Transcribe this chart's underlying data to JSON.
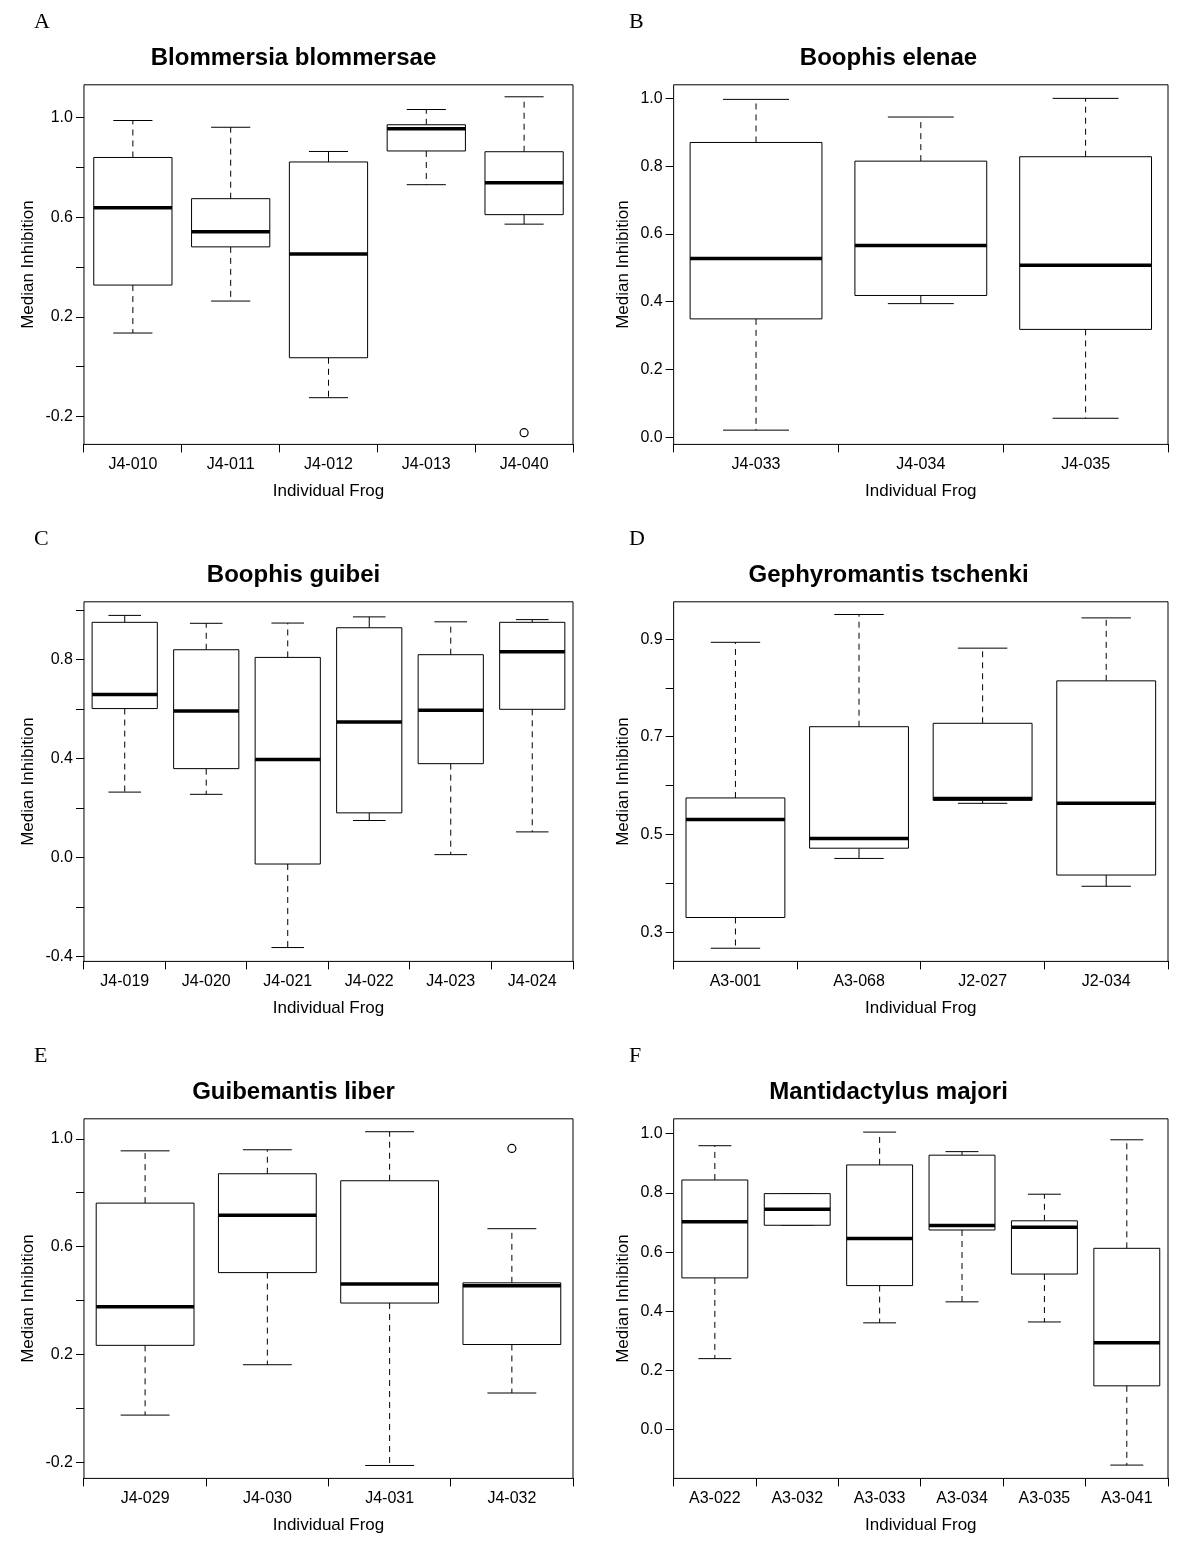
{
  "chart_data": [
    {
      "type": "box",
      "title": "Blommersia blommersae",
      "xlabel": "Individual Frog",
      "ylabel": "Median Inhibition",
      "annotations": [
        "A"
      ],
      "categories": [
        "J4-010",
        "J4-011",
        "J4-012",
        "J4-013",
        "J4-040"
      ],
      "boxes": [
        {
          "low": 0.136,
          "q1": 0.328,
          "median": 0.638,
          "q3": 0.839,
          "high": 0.987
        },
        {
          "low": 0.264,
          "q1": 0.481,
          "median": 0.542,
          "q3": 0.674,
          "high": 0.96
        },
        {
          "low": -0.123,
          "q1": 0.037,
          "median": 0.452,
          "q3": 0.821,
          "high": 0.863
        },
        {
          "low": 0.73,
          "q1": 0.865,
          "median": 0.954,
          "q3": 0.97,
          "high": 1.031
        },
        {
          "low": 0.572,
          "q1": 0.61,
          "median": 0.738,
          "q3": 0.862,
          "high": 1.082,
          "outliers": [
            -0.263
          ]
        }
      ],
      "ylim": [
        -0.31,
        1.13
      ],
      "yticks": [
        -0.2,
        {
          "value": 0,
          "label": null
        },
        0.2,
        {
          "value": 0.4,
          "label": null
        },
        0.6,
        {
          "value": 0.8,
          "label": null
        },
        {
          "value": 1,
          "label": "1.0"
        }
      ]
    },
    {
      "type": "box",
      "title": "Boophis elenae",
      "xlabel": "Individual Frog",
      "ylabel": "Median Inhibition",
      "annotations": [
        "B"
      ],
      "categories": [
        "J4-033",
        "J4-034",
        "J4-035"
      ],
      "boxes": [
        {
          "low": 0.022,
          "q1": 0.35,
          "median": 0.528,
          "q3": 0.87,
          "high": 0.997
        },
        {
          "low": 0.395,
          "q1": 0.419,
          "median": 0.566,
          "q3": 0.815,
          "high": 0.945
        },
        {
          "low": 0.057,
          "q1": 0.319,
          "median": 0.508,
          "q3": 0.828,
          "high": 1.0
        }
      ],
      "ylim": [
        -0.02,
        1.04
      ],
      "yticks": [
        {
          "value": 0,
          "label": "0.0"
        },
        0.2,
        0.4,
        0.6,
        0.8,
        {
          "value": 1,
          "label": "1.0"
        }
      ]
    },
    {
      "type": "box",
      "title": "Boophis guibei",
      "xlabel": "Individual Frog",
      "ylabel": "Median Inhibition",
      "annotations": [
        "C"
      ],
      "categories": [
        "J4-019",
        "J4-020",
        "J4-021",
        "J4-022",
        "J4-023",
        "J4-024"
      ],
      "boxes": [
        {
          "low": 0.265,
          "q1": 0.603,
          "median": 0.66,
          "q3": 0.952,
          "high": 0.98
        },
        {
          "low": 0.256,
          "q1": 0.36,
          "median": 0.593,
          "q3": 0.841,
          "high": 0.948
        },
        {
          "low": -0.364,
          "q1": -0.026,
          "median": 0.397,
          "q3": 0.81,
          "high": 0.949
        },
        {
          "low": 0.15,
          "q1": 0.181,
          "median": 0.549,
          "q3": 0.93,
          "high": 0.974
        },
        {
          "low": 0.012,
          "q1": 0.38,
          "median": 0.596,
          "q3": 0.821,
          "high": 0.954
        },
        {
          "low": 0.104,
          "q1": 0.6,
          "median": 0.833,
          "q3": 0.952,
          "high": 0.963
        }
      ],
      "ylim": [
        -0.42,
        1.035
      ],
      "yticks": [
        -0.4,
        {
          "value": -0.2,
          "label": null
        },
        {
          "value": 0,
          "label": "0.0"
        },
        {
          "value": 0.2,
          "label": null
        },
        0.4,
        {
          "value": 0.6,
          "label": null
        },
        0.8,
        {
          "value": 1,
          "label": null
        }
      ]
    },
    {
      "type": "box",
      "title": "Gephyromantis tschenki",
      "xlabel": "Individual Frog",
      "ylabel": "Median Inhibition",
      "annotations": [
        "D"
      ],
      "categories": [
        "A3-001",
        "A3-068",
        "J2-027",
        "J2-034"
      ],
      "boxes": [
        {
          "low": 0.267,
          "q1": 0.33,
          "median": 0.531,
          "q3": 0.575,
          "high": 0.894
        },
        {
          "low": 0.451,
          "q1": 0.472,
          "median": 0.492,
          "q3": 0.721,
          "high": 0.951
        },
        {
          "low": 0.564,
          "q1": 0.57,
          "median": 0.574,
          "q3": 0.728,
          "high": 0.882
        },
        {
          "low": 0.394,
          "q1": 0.417,
          "median": 0.564,
          "q3": 0.815,
          "high": 0.944
        }
      ],
      "ylim": [
        0.24,
        0.977
      ],
      "yticks": [
        0.3,
        {
          "value": 0.4,
          "label": null
        },
        0.5,
        {
          "value": 0.6,
          "label": null
        },
        0.7,
        {
          "value": 0.8,
          "label": null
        },
        0.9
      ]
    },
    {
      "type": "box",
      "title": "Guibemantis liber",
      "xlabel": "Individual Frog",
      "ylabel": "Median Inhibition",
      "annotations": [
        "E"
      ],
      "categories": [
        "J4-029",
        "J4-030",
        "J4-031",
        "J4-032"
      ],
      "boxes": [
        {
          "low": -0.025,
          "q1": 0.234,
          "median": 0.377,
          "q3": 0.762,
          "high": 0.956
        },
        {
          "low": 0.162,
          "q1": 0.504,
          "median": 0.717,
          "q3": 0.871,
          "high": 0.96
        },
        {
          "low": -0.212,
          "q1": 0.391,
          "median": 0.462,
          "q3": 0.845,
          "high": 1.027
        },
        {
          "low": 0.057,
          "q1": 0.237,
          "median": 0.455,
          "q3": 0.466,
          "high": 0.667,
          "outliers": [
            0.965
          ]
        }
      ],
      "ylim": [
        -0.26,
        1.075
      ],
      "yticks": [
        -0.2,
        {
          "value": 0,
          "label": null
        },
        0.2,
        {
          "value": 0.4,
          "label": null
        },
        0.6,
        {
          "value": 0.8,
          "label": null
        },
        {
          "value": 1,
          "label": "1.0"
        }
      ]
    },
    {
      "type": "box",
      "title": "Mantidactylus majori",
      "xlabel": "Individual Frog",
      "ylabel": "Median Inhibition",
      "annotations": [
        "F"
      ],
      "categories": [
        "A3-022",
        "A3-032",
        "A3-033",
        "A3-034",
        "A3-035",
        "A3-041"
      ],
      "boxes": [
        {
          "low": 0.24,
          "q1": 0.513,
          "median": 0.703,
          "q3": 0.844,
          "high": 0.96
        },
        {
          "low": 0.691,
          "q1": 0.691,
          "median": 0.745,
          "q3": 0.798,
          "high": 0.798
        },
        {
          "low": 0.361,
          "q1": 0.487,
          "median": 0.646,
          "q3": 0.895,
          "high": 1.006
        },
        {
          "low": 0.432,
          "q1": 0.675,
          "median": 0.69,
          "q3": 0.928,
          "high": 0.94
        },
        {
          "low": 0.364,
          "q1": 0.526,
          "median": 0.684,
          "q3": 0.706,
          "high": 0.796
        },
        {
          "low": -0.12,
          "q1": 0.148,
          "median": 0.294,
          "q3": 0.613,
          "high": 0.98
        }
      ],
      "ylim": [
        -0.165,
        1.051
      ],
      "yticks": [
        {
          "value": 0,
          "label": "0.0"
        },
        0.2,
        0.4,
        0.6,
        0.8,
        {
          "value": 1,
          "label": "1.0"
        }
      ]
    }
  ]
}
